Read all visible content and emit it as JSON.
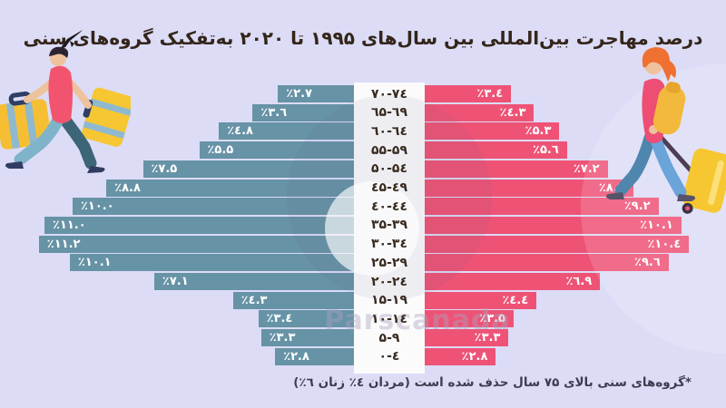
{
  "page": {
    "background": "#dcdcf6"
  },
  "header": {
    "title": "درصد مهاجرت بین‌المللی بین سال‌های ۱۹۹۵ تا ۲۰۲۰ به‌تفکیک گروه‌های سنی"
  },
  "watermark": {
    "text": "Parscanada"
  },
  "footnote": {
    "text": "*گروه‌های سنی بالای ۷۵ سال حذف شده است (مردان ٤٪ زنان ٦٪)"
  },
  "chart_data": {
    "type": "bar",
    "subtype": "population-pyramid",
    "unit": "%",
    "title": "درصد مهاجرت بین‌المللی بین سال‌های ۱۹۹۵ تا ۲۰۲۰ به‌تفکیک گروه‌های سنی",
    "categories": [
      "۷۰-۷٤",
      "٦۵-٦۹",
      "٦۰-٦٤",
      "۵۵-۵۹",
      "۵۰-۵٤",
      "٤۵-٤۹",
      "٤۰-٤٤",
      "۳۵-۳۹",
      "۳۰-۳٤",
      "۲۵-۲۹",
      "۲۰-۲٤",
      "۱۵-۱۹",
      "۱۰-۱٤",
      "۵-۹",
      "۰-٤"
    ],
    "categories_latin": [
      "70-74",
      "65-69",
      "60-64",
      "55-59",
      "50-54",
      "45-49",
      "40-44",
      "35-39",
      "30-34",
      "25-29",
      "20-24",
      "15-19",
      "10-14",
      "5-9",
      "0-4"
    ],
    "legend_position": "none",
    "grid": false,
    "series": [
      {
        "name": "مردان",
        "side": "left",
        "color": "#6793a6",
        "values": [
          2.7,
          3.6,
          4.8,
          5.5,
          7.5,
          8.8,
          10.0,
          11.0,
          11.2,
          10.1,
          7.1,
          4.3,
          3.4,
          3.3,
          2.8
        ],
        "labels": [
          "٪۲.۷",
          "٪۳.٦",
          "٪٤.۸",
          "٪۵.۵",
          "٪۷.۵",
          "٪۸.۸",
          "٪۱۰.۰",
          "٪۱۱.۰",
          "٪۱۱.۲",
          "٪۱۰.۱",
          "٪۷.۱",
          "٪٤.۳",
          "٪۳.٤",
          "٪۳.۳",
          "٪۲.۸"
        ]
      },
      {
        "name": "زنان",
        "side": "right",
        "color": "#ee5376",
        "values": [
          3.4,
          4.3,
          5.3,
          5.6,
          7.2,
          8.2,
          9.2,
          10.1,
          10.4,
          9.6,
          6.9,
          4.4,
          3.5,
          3.3,
          2.8
        ],
        "labels": [
          "٪۳.٤",
          "٪٤.۳",
          "٪۵.۳",
          "٪۵.٦",
          "٪۷.۲",
          "٪۸.۲",
          "٪۹.۲",
          "٪۱۰.۱",
          "٪۱۰.٤",
          "٪۹.٦",
          "٪٦.۹",
          "٪٤.٤",
          "٪۳.۵",
          "٪۳.۳",
          "٪۲.۸"
        ]
      }
    ],
    "value_range": [
      0,
      11.2
    ]
  }
}
